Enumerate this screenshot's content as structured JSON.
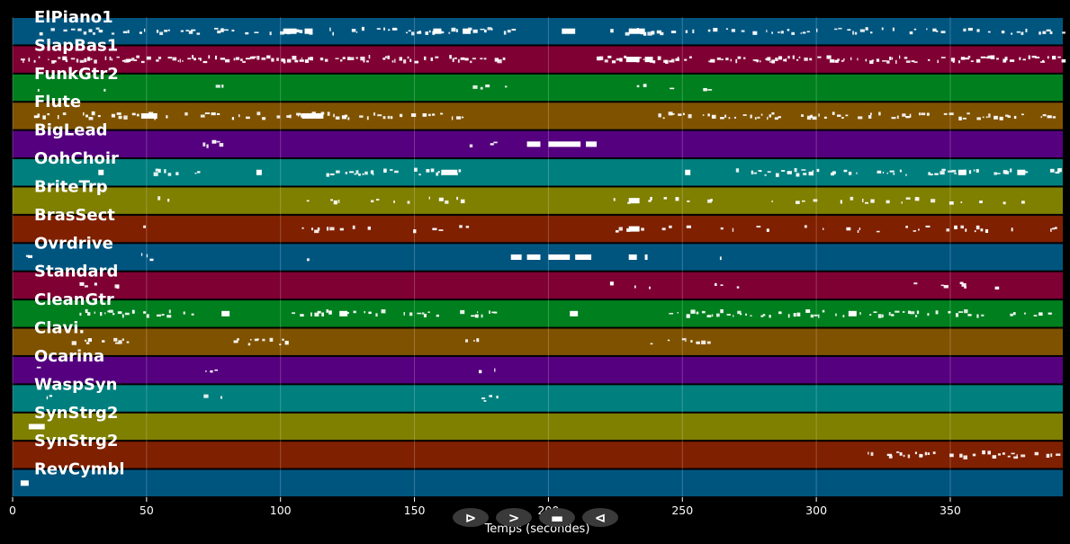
{
  "chart_data": {
    "type": "piano-roll",
    "xlabel": "Temps (secondes)",
    "xlim": [
      0,
      392
    ],
    "xticks": [
      0,
      50,
      100,
      150,
      200,
      250,
      300,
      350
    ],
    "grid": true,
    "tracks": [
      {
        "name": "ElPiano1",
        "color": "#00557f",
        "segments": [
          [
            10,
            187,
            0.5
          ],
          [
            218,
            392,
            0.5
          ]
        ],
        "blocks": [
          [
            101,
            5
          ],
          [
            109,
            3
          ],
          [
            157,
            3
          ],
          [
            168,
            3
          ],
          [
            205,
            5
          ],
          [
            230,
            6
          ]
        ]
      },
      {
        "name": "SlapBas1",
        "color": "#7f0033",
        "segments": [
          [
            3,
            183,
            0.8
          ],
          [
            218,
            392,
            0.8
          ]
        ],
        "blocks": [
          [
            229,
            5
          ],
          [
            236,
            3
          ]
        ]
      },
      {
        "name": "FunkGtr2",
        "color": "#007f1e",
        "segments": [
          [
            3,
            18,
            0.3
          ],
          [
            34,
            42,
            0.3
          ],
          [
            70,
            86,
            0.3
          ],
          [
            93,
            101,
            0.3
          ],
          [
            166,
            184,
            0.3
          ],
          [
            233,
            246,
            0.3
          ],
          [
            253,
            262,
            0.3
          ]
        ],
        "blocks": []
      },
      {
        "name": "Flute",
        "color": "#7f5200",
        "segments": [
          [
            8,
            168,
            0.6
          ],
          [
            237,
            392,
            0.6
          ]
        ],
        "blocks": [
          [
            48,
            6
          ],
          [
            108,
            8
          ]
        ]
      },
      {
        "name": "BigLead",
        "color": "#55007f",
        "segments": [
          [
            71,
            78,
            0.5
          ],
          [
            169,
            180,
            0.5
          ]
        ],
        "blocks": [
          [
            192,
            5
          ],
          [
            200,
            12
          ],
          [
            214,
            4
          ]
        ]
      },
      {
        "name": "OohChoir",
        "color": "#007f7f",
        "segments": [
          [
            51,
            70,
            0.6
          ],
          [
            111,
            167,
            0.6
          ],
          [
            270,
            392,
            0.6
          ]
        ],
        "blocks": [
          [
            32,
            2
          ],
          [
            91,
            2
          ],
          [
            160,
            6
          ],
          [
            251,
            2
          ],
          [
            353,
            3
          ],
          [
            375,
            3
          ]
        ]
      },
      {
        "name": "BriteTrp",
        "color": "#7f7f00",
        "segments": [
          [
            48,
            60,
            0.25
          ],
          [
            108,
            170,
            0.25
          ],
          [
            220,
            392,
            0.25
          ]
        ],
        "blocks": [
          [
            230,
            4
          ]
        ]
      },
      {
        "name": "BrasSect",
        "color": "#7f2000",
        "segments": [
          [
            48,
            60,
            0.25
          ],
          [
            108,
            170,
            0.25
          ],
          [
            220,
            392,
            0.25
          ]
        ],
        "blocks": [
          [
            230,
            4
          ]
        ]
      },
      {
        "name": "Ovrdrive",
        "color": "#00557f",
        "segments": [
          [
            5,
            14,
            0.3
          ],
          [
            48,
            52,
            0.3
          ],
          [
            108,
            111,
            0.3
          ],
          [
            264,
            268,
            0.3
          ]
        ],
        "blocks": [
          [
            186,
            4
          ],
          [
            192,
            5
          ],
          [
            200,
            8
          ],
          [
            210,
            6
          ],
          [
            230,
            3
          ],
          [
            236,
            1
          ]
        ]
      },
      {
        "name": "Standard",
        "color": "#7f0033",
        "segments": [
          [
            25,
            40,
            0.15
          ],
          [
            105,
            112,
            0.15
          ],
          [
            147,
            150,
            0.15
          ],
          [
            184,
            192,
            0.15
          ],
          [
            223,
            238,
            0.15
          ],
          [
            262,
            272,
            0.15
          ],
          [
            325,
            392,
            0.15
          ]
        ],
        "blocks": []
      },
      {
        "name": "CleanGtr",
        "color": "#007f1e",
        "segments": [
          [
            25,
            68,
            0.6
          ],
          [
            102,
            160,
            0.6
          ],
          [
            167,
            180,
            0.6
          ],
          [
            245,
            392,
            0.6
          ]
        ],
        "blocks": [
          [
            78,
            3
          ],
          [
            122,
            3
          ],
          [
            208,
            3
          ],
          [
            312,
            3
          ]
        ]
      },
      {
        "name": "Clavi.",
        "color": "#7f5200",
        "segments": [
          [
            19,
            43,
            0.5
          ],
          [
            78,
            102,
            0.5
          ],
          [
            166,
            175,
            0.5
          ],
          [
            238,
            262,
            0.5
          ]
        ],
        "blocks": []
      },
      {
        "name": "Ocarina",
        "color": "#55007f",
        "segments": [
          [
            9,
            18,
            0.3
          ],
          [
            70,
            77,
            0.3
          ],
          [
            174,
            181,
            0.3
          ]
        ],
        "blocks": []
      },
      {
        "name": "WaspSyn",
        "color": "#007f7f",
        "segments": [
          [
            10,
            18,
            0.3
          ],
          [
            70,
            78,
            0.3
          ],
          [
            175,
            182,
            0.3
          ]
        ],
        "blocks": []
      },
      {
        "name": "SynStrg2",
        "color": "#7f7f00",
        "segments": [],
        "blocks": [
          [
            6,
            6
          ]
        ]
      },
      {
        "name": "SynStrg2",
        "color": "#7f2000",
        "segments": [
          [
            318,
            392,
            0.5
          ]
        ],
        "blocks": []
      },
      {
        "name": "RevCymbl",
        "color": "#00557f",
        "segments": [],
        "blocks": [
          [
            3,
            3
          ]
        ]
      }
    ]
  },
  "controls": [
    {
      "name": "play-button",
      "glyph": "⊳"
    },
    {
      "name": "forward-button",
      "glyph": ">"
    },
    {
      "name": "stop-button",
      "glyph": "▬"
    },
    {
      "name": "back-button",
      "glyph": "⊲"
    }
  ]
}
